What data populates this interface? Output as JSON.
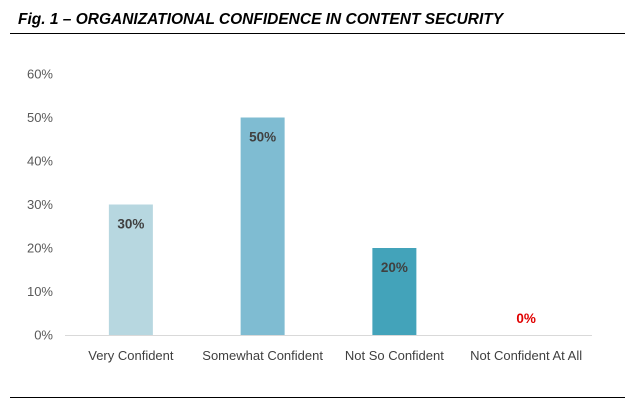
{
  "figure": {
    "title": "Fig. 1 – ORGANIZATIONAL CONFIDENCE IN CONTENT SECURITY"
  },
  "chart_data": {
    "type": "bar",
    "title": "Fig. 1 – ORGANIZATIONAL CONFIDENCE IN CONTENT SECURITY",
    "xlabel": "",
    "ylabel": "",
    "categories": [
      "Very Confident",
      "Somewhat Confident",
      "Not So Confident",
      "Not Confident At All"
    ],
    "values": [
      30,
      50,
      20,
      0
    ],
    "data_labels": [
      "30%",
      "50%",
      "20%",
      "0%"
    ],
    "bar_colors": [
      "#b7d7e0",
      "#7fbcd2",
      "#43a3ba",
      "#2e8fa8"
    ],
    "data_label_colors": [
      "#404040",
      "#404040",
      "#404040",
      "#e00000"
    ],
    "ylim": [
      0,
      60
    ],
    "yticks": [
      0,
      10,
      20,
      30,
      40,
      50,
      60
    ],
    "ytick_labels": [
      "0%",
      "10%",
      "20%",
      "30%",
      "40%",
      "50%",
      "60%"
    ],
    "grid": false,
    "legend": "none"
  }
}
